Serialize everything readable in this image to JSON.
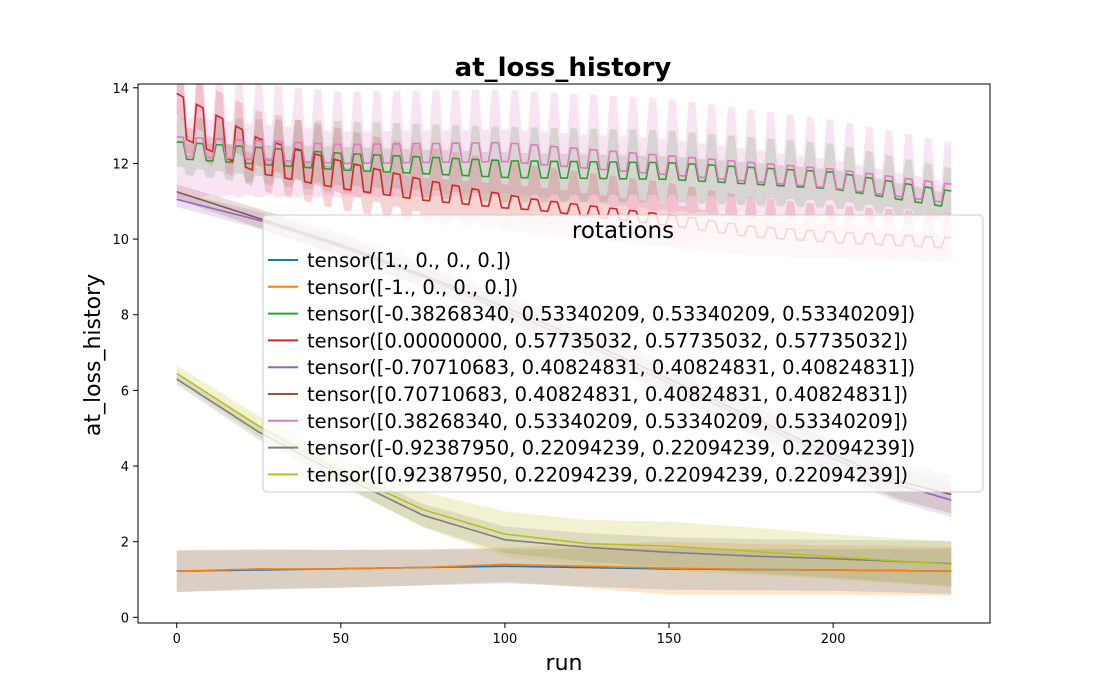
{
  "chart_data": {
    "type": "line",
    "title": "at_loss_history",
    "xlabel": "run",
    "ylabel": "at_loss_history",
    "xlim": [
      -11.8,
      247.8
    ],
    "ylim": [
      -0.15,
      14.1
    ],
    "xticks": [
      0,
      50,
      100,
      150,
      200
    ],
    "yticks": [
      0,
      2,
      4,
      6,
      8,
      10,
      12,
      14
    ],
    "grid": false,
    "legend": {
      "title": "rotations",
      "placement": "center-right"
    },
    "x_end": 236,
    "series": [
      {
        "name": "tensor([1., 0., 0., 0.])",
        "color": "#1f77b4",
        "points": [
          [
            0,
            1.22
          ],
          [
            100,
            1.35
          ],
          [
            150,
            1.28
          ],
          [
            200,
            1.25
          ],
          [
            236,
            1.22
          ]
        ],
        "band": [
          [
            0,
            0.55
          ],
          [
            50,
            0.5
          ],
          [
            100,
            0.45
          ],
          [
            150,
            0.55
          ],
          [
            200,
            0.55
          ],
          [
            236,
            0.6
          ]
        ]
      },
      {
        "name": "tensor([-1.,  0.,  0.,  0.])",
        "color": "#ff7f0e",
        "points": [
          [
            0,
            1.22
          ],
          [
            25,
            1.28
          ],
          [
            50,
            1.28
          ],
          [
            75,
            1.32
          ],
          [
            100,
            1.4
          ],
          [
            125,
            1.35
          ],
          [
            150,
            1.3
          ],
          [
            175,
            1.27
          ],
          [
            200,
            1.25
          ],
          [
            236,
            1.22
          ]
        ],
        "band": [
          [
            0,
            0.55
          ],
          [
            50,
            0.5
          ],
          [
            100,
            0.45
          ],
          [
            150,
            0.7
          ],
          [
            200,
            0.65
          ],
          [
            236,
            0.65
          ]
        ]
      },
      {
        "name": "tensor([-0.38268340,  0.53340209,  0.53340209,  0.53340209])",
        "color": "#2ca02c",
        "points": [
          [
            0,
            12.35
          ],
          [
            50,
            12.05
          ],
          [
            100,
            11.85
          ],
          [
            150,
            11.8
          ],
          [
            200,
            11.55
          ],
          [
            236,
            11.05
          ]
        ],
        "band": [
          [
            0,
            0.35
          ],
          [
            50,
            0.55
          ],
          [
            100,
            0.6
          ],
          [
            150,
            0.55
          ],
          [
            200,
            0.45
          ],
          [
            236,
            0.3
          ]
        ],
        "oscillation": {
          "period": 6,
          "amplitude": 0.22,
          "band_amplitude": 0.3
        }
      },
      {
        "name": "tensor([0.00000000, 0.57735032, 0.57735032, 0.57735032])",
        "color": "#d62728",
        "points": [
          [
            0,
            13.3
          ],
          [
            25,
            12.2
          ],
          [
            50,
            11.7
          ],
          [
            75,
            11.3
          ],
          [
            100,
            11.0
          ],
          [
            125,
            10.75
          ],
          [
            150,
            10.5
          ],
          [
            175,
            10.2
          ],
          [
            200,
            10.05
          ],
          [
            236,
            9.9
          ]
        ],
        "band": [
          [
            0,
            0.25
          ],
          [
            50,
            0.5
          ],
          [
            100,
            0.55
          ],
          [
            150,
            0.5
          ],
          [
            200,
            0.35
          ],
          [
            236,
            0.3
          ]
        ],
        "oscillation": {
          "period": 6,
          "amplitude": 0.55,
          "decay_until": 110,
          "band_amplitude": 0.35
        }
      },
      {
        "name": "tensor([-0.70710683,  0.40824831,  0.40824831,  0.40824831])",
        "color": "#9467bd",
        "points": [
          [
            0,
            11.05
          ],
          [
            25,
            10.5
          ],
          [
            50,
            9.8
          ],
          [
            75,
            9.0
          ],
          [
            100,
            8.1
          ],
          [
            125,
            7.2
          ],
          [
            150,
            6.2
          ],
          [
            175,
            5.2
          ],
          [
            200,
            4.2
          ],
          [
            220,
            3.5
          ],
          [
            236,
            3.1
          ]
        ],
        "band": [
          [
            0,
            0.2
          ],
          [
            50,
            0.25
          ],
          [
            100,
            0.3
          ],
          [
            150,
            0.35
          ],
          [
            200,
            0.45
          ],
          [
            236,
            0.45
          ]
        ]
      },
      {
        "name": "tensor([0.70710683, 0.40824831, 0.40824831, 0.40824831])",
        "color": "#8c564b",
        "points": [
          [
            0,
            11.25
          ],
          [
            25,
            10.55
          ],
          [
            50,
            9.85
          ],
          [
            75,
            9.05
          ],
          [
            100,
            8.2
          ],
          [
            125,
            7.3
          ],
          [
            150,
            6.3
          ],
          [
            175,
            5.3
          ],
          [
            200,
            4.3
          ],
          [
            220,
            3.6
          ],
          [
            236,
            3.25
          ]
        ],
        "band": [
          [
            0,
            0.2
          ],
          [
            50,
            0.3
          ],
          [
            100,
            0.35
          ],
          [
            150,
            0.4
          ],
          [
            200,
            0.45
          ],
          [
            236,
            0.5
          ]
        ]
      },
      {
        "name": "tensor([0.38268340, 0.53340209, 0.53340209, 0.53340209])",
        "color": "#e377c2",
        "points": [
          [
            0,
            12.45
          ],
          [
            50,
            12.25
          ],
          [
            100,
            12.3
          ],
          [
            150,
            11.95
          ],
          [
            200,
            11.6
          ],
          [
            236,
            11.2
          ]
        ],
        "band": [
          [
            0,
            0.9
          ],
          [
            50,
            0.7
          ],
          [
            100,
            0.7
          ],
          [
            150,
            0.8
          ],
          [
            200,
            0.6
          ],
          [
            236,
            0.4
          ]
        ],
        "oscillation": {
          "period": 6,
          "amplitude": 0.25,
          "band_amplitude": 0.7
        }
      },
      {
        "name": "tensor([-0.92387950,  0.22094239,  0.22094239,  0.22094239])",
        "color": "#7f7f7f",
        "points": [
          [
            0,
            6.3
          ],
          [
            25,
            4.9
          ],
          [
            50,
            3.75
          ],
          [
            75,
            2.7
          ],
          [
            100,
            2.05
          ],
          [
            125,
            1.85
          ],
          [
            150,
            1.72
          ],
          [
            175,
            1.62
          ],
          [
            200,
            1.55
          ],
          [
            236,
            1.42
          ]
        ],
        "band": [
          [
            0,
            0.15
          ],
          [
            50,
            0.25
          ],
          [
            100,
            0.35
          ],
          [
            150,
            0.4
          ],
          [
            200,
            0.5
          ],
          [
            236,
            0.6
          ]
        ]
      },
      {
        "name": "tensor([0.92387950, 0.22094239, 0.22094239, 0.22094239])",
        "color": "#bcbd22",
        "points": [
          [
            0,
            6.45
          ],
          [
            25,
            5.05
          ],
          [
            50,
            3.85
          ],
          [
            75,
            2.85
          ],
          [
            100,
            2.2
          ],
          [
            125,
            1.95
          ],
          [
            150,
            1.88
          ],
          [
            175,
            1.75
          ],
          [
            200,
            1.6
          ],
          [
            236,
            1.4
          ]
        ],
        "band": [
          [
            0,
            0.2
          ],
          [
            50,
            0.35
          ],
          [
            100,
            0.6
          ],
          [
            150,
            0.65
          ],
          [
            200,
            0.6
          ],
          [
            236,
            0.6
          ]
        ]
      }
    ]
  }
}
